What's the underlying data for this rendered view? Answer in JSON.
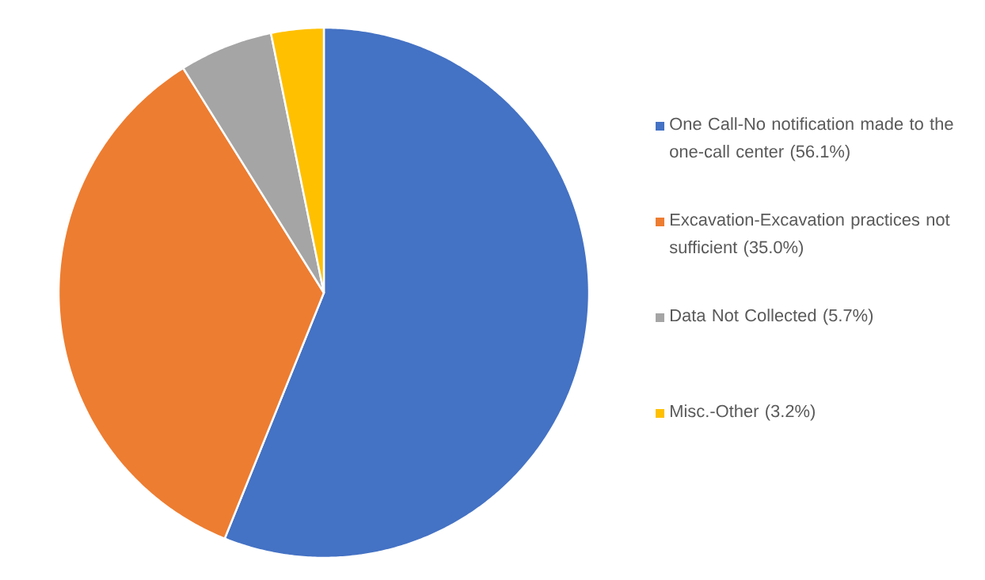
{
  "chart_data": {
    "type": "pie",
    "categories": [
      "One Call-No notification made to the one-call center (56.1%)",
      "Excavation-Excavation practices not sufficient (35.0%)",
      "Data Not Collected (5.7%)",
      "Misc.-Other (3.2%)"
    ],
    "values": [
      56.1,
      35.0,
      5.7,
      3.2
    ],
    "colors": [
      "#4472c4",
      "#ed7d31",
      "#a5a5a5",
      "#ffc000"
    ],
    "legend": "right"
  }
}
